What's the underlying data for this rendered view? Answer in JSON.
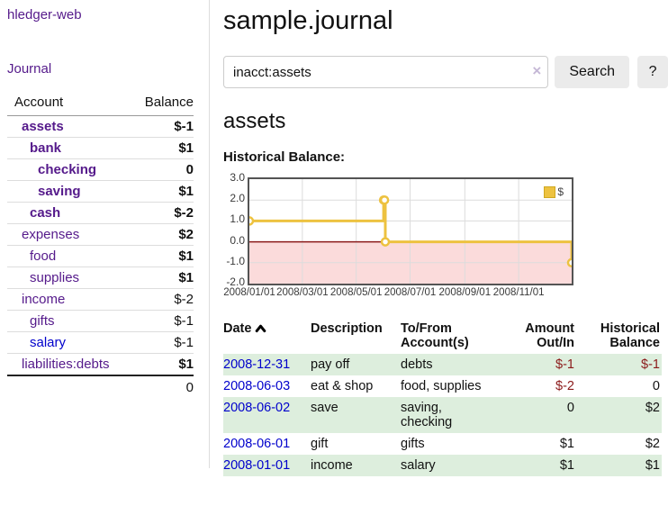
{
  "app": {
    "brand": "hledger-web",
    "nav_journal": "Journal"
  },
  "sidebar": {
    "header": {
      "account": "Account",
      "balance": "Balance"
    },
    "accounts": [
      {
        "name": "assets",
        "balance": "$-1",
        "level": 1,
        "bold": true,
        "balance_style": "neg",
        "link_style": "purple"
      },
      {
        "name": "bank",
        "balance": "$1",
        "level": 2,
        "bold": true,
        "balance_style": "pos",
        "link_style": "purple"
      },
      {
        "name": "checking",
        "balance": "0",
        "level": 3,
        "bold": true,
        "balance_style": "pos",
        "link_style": "purple"
      },
      {
        "name": "saving",
        "balance": "$1",
        "level": 3,
        "bold": true,
        "balance_style": "pos",
        "link_style": "purple"
      },
      {
        "name": "cash",
        "balance": "$-2",
        "level": 2,
        "bold": true,
        "balance_style": "neg",
        "link_style": "purple"
      },
      {
        "name": "expenses",
        "balance": "$2",
        "level": 1,
        "bold": false,
        "balance_style": "pos",
        "link_style": "purple"
      },
      {
        "name": "food",
        "balance": "$1",
        "level": 2,
        "bold": false,
        "balance_style": "pos",
        "link_style": "purple"
      },
      {
        "name": "supplies",
        "balance": "$1",
        "level": 2,
        "bold": false,
        "balance_style": "pos",
        "link_style": "purple"
      },
      {
        "name": "income",
        "balance": "$-2",
        "level": 1,
        "bold": false,
        "balance_style": "faded",
        "link_style": "purple"
      },
      {
        "name": "gifts",
        "balance": "$-1",
        "level": 2,
        "bold": false,
        "balance_style": "faded",
        "link_style": "purple"
      },
      {
        "name": "salary",
        "balance": "$-1",
        "level": 2,
        "bold": false,
        "balance_style": "faded",
        "link_style": "blue"
      },
      {
        "name": "liabilities:debts",
        "balance": "$1",
        "level": 1,
        "bold": false,
        "balance_style": "pos",
        "link_style": "purple"
      }
    ],
    "total": "0"
  },
  "header": {
    "title": "sample.journal"
  },
  "search": {
    "value": "inacct:assets",
    "clear_icon": "×",
    "button": "Search",
    "help_button": "?"
  },
  "account_page": {
    "heading": "assets",
    "chart_label": "Historical Balance:"
  },
  "chart_data": {
    "type": "line",
    "title": "Historical Balance",
    "steps": true,
    "series": [
      {
        "name": "$",
        "color": "#edc240",
        "points": [
          [
            "2008-01-01",
            1
          ],
          [
            "2008-06-01",
            2
          ],
          [
            "2008-06-02",
            2
          ],
          [
            "2008-06-03",
            0
          ],
          [
            "2008-12-31",
            -1
          ]
        ]
      }
    ],
    "xlim": [
      "2008-01-01",
      "2008-12-31"
    ],
    "ylim": [
      -2,
      3
    ],
    "x_ticks": [
      {
        "date": "2008-01-01",
        "label": "2008/01/01"
      },
      {
        "date": "2008-03-01",
        "label": "2008/03/01"
      },
      {
        "date": "2008-05-01",
        "label": "2008/05/01"
      },
      {
        "date": "2008-07-01",
        "label": "2008/07/01"
      },
      {
        "date": "2008-09-01",
        "label": "2008/09/01"
      },
      {
        "date": "2008-11-01",
        "label": "2008/11/01"
      }
    ],
    "y_ticks": [
      "3.0",
      "2.0",
      "1.0",
      "0.0",
      "-1.0",
      "-2.0"
    ],
    "grid": true,
    "legend": {
      "label": "$",
      "position": "top-right"
    },
    "colors": {
      "line": "#edc240",
      "marker_fill": "#ffffff",
      "negative_region": "#fbdbdb",
      "zero_line": "#8b1a1a",
      "gridline": "#dcdcdc",
      "border": "#545454"
    }
  },
  "register": {
    "columns": {
      "date": "Date",
      "description": "Description",
      "accounts": "To/From Account(s)",
      "amount": "Amount Out/In",
      "balance": "Historical Balance"
    },
    "rows": [
      {
        "date": "2008-12-31",
        "description": "pay off",
        "accounts": "debts",
        "amount": "$-1",
        "amount_neg": true,
        "balance": "$-1",
        "balance_neg": true,
        "shaded": true
      },
      {
        "date": "2008-06-03",
        "description": "eat & shop",
        "accounts": "food, supplies",
        "amount": "$-2",
        "amount_neg": true,
        "balance": "0",
        "balance_neg": false,
        "shaded": false
      },
      {
        "date": "2008-06-02",
        "description": "save",
        "accounts": "saving, checking",
        "amount": "0",
        "amount_neg": false,
        "balance": "$2",
        "balance_neg": false,
        "shaded": true
      },
      {
        "date": "2008-06-01",
        "description": "gift",
        "accounts": "gifts",
        "amount": "$1",
        "amount_neg": false,
        "balance": "$2",
        "balance_neg": false,
        "shaded": false
      },
      {
        "date": "2008-01-01",
        "description": "income",
        "accounts": "salary",
        "amount": "$1",
        "amount_neg": false,
        "balance": "$1",
        "balance_neg": false,
        "shaded": true
      }
    ]
  }
}
